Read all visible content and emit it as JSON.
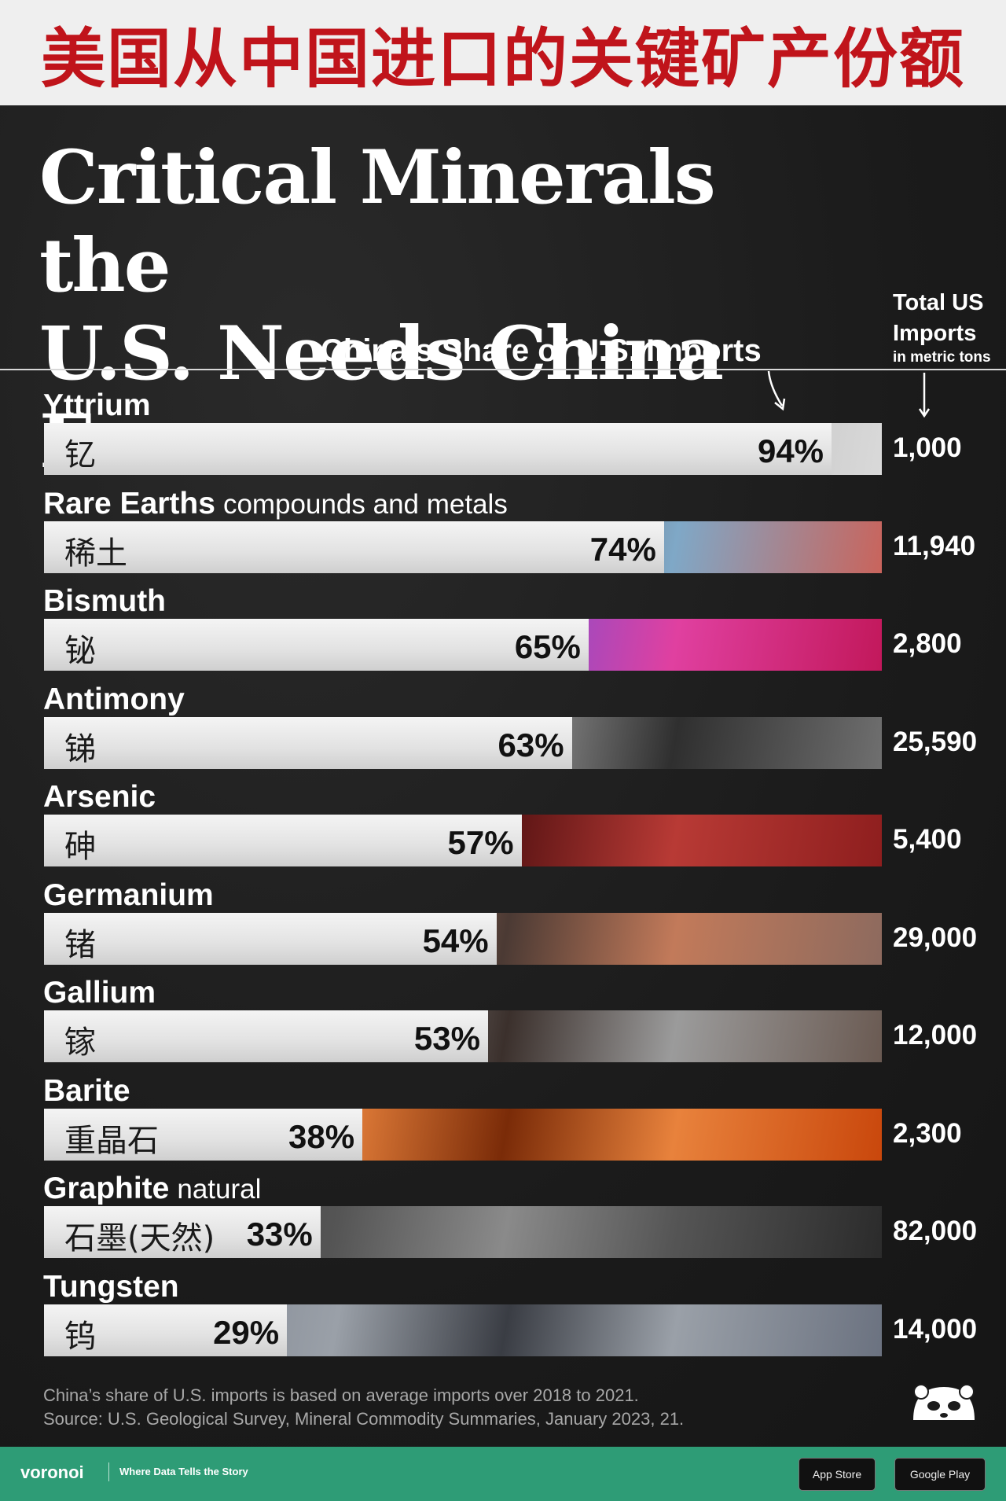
{
  "banner": {
    "title": "美国从中国进口的关键矿产份额"
  },
  "header": {
    "title_line1": "Critical Minerals the",
    "title_line2": "U.S. Needs China For",
    "subtitle": "China's Share of U.S. Imports",
    "total_head_line1": "Total US",
    "total_head_line2": "Imports",
    "total_head_unit": "in metric tons"
  },
  "colors": {
    "banner_text": "#c0141b",
    "background": "#1c1c1c",
    "footer": "#2e9c76"
  },
  "chart_data": {
    "type": "bar",
    "orientation": "horizontal",
    "title": "Critical Minerals the U.S. Needs China For",
    "xlabel": "China's Share of U.S. Imports",
    "xlim": [
      0,
      100
    ],
    "categories": [
      "Yttrium",
      "Rare Earths",
      "Bismuth",
      "Antimony",
      "Arsenic",
      "Germanium",
      "Gallium",
      "Barite",
      "Graphite",
      "Tungsten"
    ],
    "rows": [
      {
        "name": "Yttrium",
        "qualifier": "",
        "chinese": "钇",
        "share": 94,
        "share_label": "94%",
        "total_us_imports": "1,000",
        "texture": [
          "#d9d9d9",
          "#bdbdbd",
          "#4a4a4a"
        ]
      },
      {
        "name": "Rare Earths",
        "qualifier": "compounds and metals",
        "chinese": "稀土",
        "share": 74,
        "share_label": "74%",
        "total_us_imports": "11,940",
        "texture": [
          "#c9645c",
          "#7fa8c7",
          "#5a4a44"
        ]
      },
      {
        "name": "Bismuth",
        "qualifier": "",
        "chinese": "铋",
        "share": 65,
        "share_label": "65%",
        "total_us_imports": "2,800",
        "texture": [
          "#c2185b",
          "#e040a0",
          "#7b4fd1"
        ]
      },
      {
        "name": "Antimony",
        "qualifier": "",
        "chinese": "锑",
        "share": 63,
        "share_label": "63%",
        "total_us_imports": "25,590",
        "texture": [
          "#6f6f6f",
          "#2f2f2f",
          "#9a9a9a"
        ]
      },
      {
        "name": "Arsenic",
        "qualifier": "",
        "chinese": "砷",
        "share": 57,
        "share_label": "57%",
        "total_us_imports": "5,400",
        "texture": [
          "#8e1e1e",
          "#b83a35",
          "#5a1414"
        ]
      },
      {
        "name": "Germanium",
        "qualifier": "",
        "chinese": "锗",
        "share": 54,
        "share_label": "54%",
        "total_us_imports": "29,000",
        "texture": [
          "#8d6a5e",
          "#c27a5a",
          "#4b3a34"
        ]
      },
      {
        "name": "Gallium",
        "qualifier": "",
        "chinese": "镓",
        "share": 53,
        "share_label": "53%",
        "total_us_imports": "12,000",
        "texture": [
          "#6a5a52",
          "#9b9b9b",
          "#3b302c"
        ]
      },
      {
        "name": "Barite",
        "qualifier": "",
        "chinese": "重晶石",
        "share": 38,
        "share_label": "38%",
        "total_us_imports": "2,300",
        "texture": [
          "#c9470c",
          "#e8823c",
          "#7a2b08"
        ]
      },
      {
        "name": "Graphite",
        "qualifier": "natural",
        "chinese": "石墨(天然)",
        "share": 33,
        "share_label": "33%",
        "total_us_imports": "82,000",
        "texture": [
          "#2b2b2b",
          "#555555",
          "#8a8a8a"
        ]
      },
      {
        "name": "Tungsten",
        "qualifier": "",
        "chinese": "钨",
        "share": 29,
        "share_label": "29%",
        "total_us_imports": "14,000",
        "texture": [
          "#6b7280",
          "#9aa0a8",
          "#3a3d44"
        ]
      }
    ]
  },
  "footnote": {
    "line1": "China’s share of U.S. imports is based on average imports over 2018 to 2021.",
    "line2": "Source: U.S. Geological Survey, Mineral Commodity Summaries, January 2023, 21."
  },
  "footer": {
    "brand": "voronoi",
    "tagline": "Where Data Tells the Story",
    "app_store": "App Store",
    "google_play": "Google Play"
  }
}
